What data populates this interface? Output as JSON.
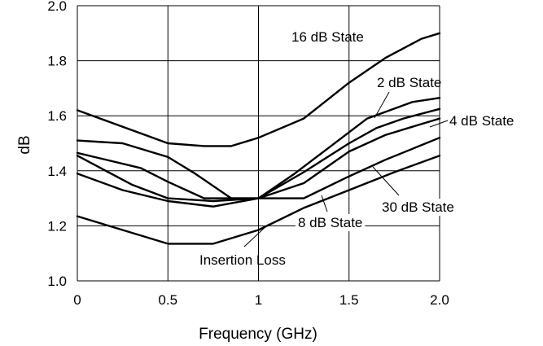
{
  "chart_data": {
    "type": "line",
    "title": "",
    "xlabel": "Frequency (GHz)",
    "ylabel": "dB",
    "xlim": [
      0,
      2.0
    ],
    "ylim": [
      1.0,
      2.0
    ],
    "x_ticks": [
      0,
      0.5,
      1,
      1.5,
      2.0
    ],
    "x_tick_labels": [
      "0",
      "0.5",
      "1",
      "1.5",
      "2.0"
    ],
    "y_ticks": [
      1.0,
      1.2,
      1.4,
      1.6,
      1.8,
      2.0
    ],
    "y_tick_labels": [
      "1.0",
      "1.2",
      "1.4",
      "1.6",
      "1.8",
      "2.0"
    ],
    "grid": true,
    "legend": "none (series labeled inline)",
    "series": [
      {
        "name": "16 dB State",
        "x": [
          0,
          0.25,
          0.5,
          0.65,
          0.85,
          1.0,
          1.2,
          1.4,
          1.6,
          1.85,
          1.95,
          2.0
        ],
        "y": [
          1.51,
          1.5,
          1.45,
          1.39,
          1.3,
          1.3,
          1.39,
          1.49,
          1.59,
          1.65,
          1.66,
          1.665
        ]
      },
      {
        "name": "2 dB State",
        "x": [
          0,
          0.35,
          0.5,
          0.7,
          1.0,
          1.25,
          1.5,
          1.65,
          1.8,
          2.0
        ],
        "y": [
          1.465,
          1.41,
          1.36,
          1.3,
          1.3,
          1.395,
          1.5,
          1.555,
          1.59,
          1.625
        ]
      },
      {
        "name": "4 dB State",
        "x": [
          0,
          0.3,
          0.5,
          0.75,
          1.0,
          1.25,
          1.5,
          1.7,
          1.85,
          2.0
        ],
        "y": [
          1.455,
          1.35,
          1.3,
          1.29,
          1.3,
          1.355,
          1.47,
          1.53,
          1.56,
          1.59
        ]
      },
      {
        "name": "30 dB State",
        "x": [
          0,
          0.25,
          0.5,
          0.75,
          1.0,
          1.25,
          1.5,
          1.7,
          1.85,
          2.0
        ],
        "y": [
          1.39,
          1.33,
          1.29,
          1.27,
          1.3,
          1.3,
          1.38,
          1.44,
          1.48,
          1.52
        ]
      },
      {
        "name": "8 dB State",
        "x": [
          0,
          0.5,
          0.7,
          0.85,
          1.0,
          1.25,
          1.5,
          1.7,
          1.9,
          2.0
        ],
        "y": [
          1.62,
          1.5,
          1.49,
          1.49,
          1.52,
          1.59,
          1.72,
          1.81,
          1.88,
          1.9
        ]
      },
      {
        "name": "Insertion Loss",
        "x": [
          0,
          0.25,
          0.5,
          0.75,
          1.0,
          1.25,
          1.5,
          1.75,
          2.0
        ],
        "y": [
          1.235,
          1.185,
          1.135,
          1.135,
          1.185,
          1.265,
          1.33,
          1.395,
          1.455
        ]
      }
    ],
    "annotations": [
      {
        "text": "16 dB State"
      },
      {
        "text": "2 dB State"
      },
      {
        "text": "4 dB State"
      },
      {
        "text": "30 dB State"
      },
      {
        "text": "8 dB State"
      },
      {
        "text": "Insertion Loss"
      }
    ]
  }
}
